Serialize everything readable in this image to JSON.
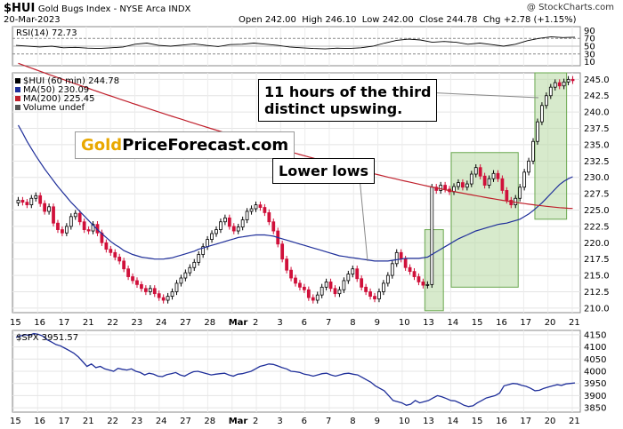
{
  "header": {
    "symbol": "$HUI",
    "name": "Gold Bugs Index - NYSE Arca INDX",
    "watermark": "@ StockCharts.com",
    "date": "20-Mar-2023",
    "open_label": "Open",
    "open": "242.00",
    "high_label": "High",
    "high": "246.10",
    "low_label": "Low",
    "low": "242.00",
    "close_label": "Close",
    "close": "244.78",
    "chg_label": "Chg",
    "chg": "+2.78 (+1.15%)"
  },
  "logo": {
    "part1": "Gold",
    "part2": "PriceForecast.com"
  },
  "annotations": {
    "callout1_line1": "11 hours of the third",
    "callout1_line2": "distinct upswing.",
    "callout2": "Lower lows"
  },
  "colors": {
    "up_candle": "#000000",
    "down_candle": "#d0103a",
    "ma50": "#1f2f9a",
    "ma200": "#c0202c",
    "highlight_fill": "#b6d9a3",
    "highlight_stroke": "#6aa84f",
    "spx_line": "#1f2f9a"
  },
  "chart_data": [
    {
      "type": "line",
      "name": "RSI panel",
      "legend": [
        {
          "label": "RSI(14)",
          "value": "72.73"
        }
      ],
      "y_ticks": [
        "70",
        "50",
        "30",
        "10",
        "90"
      ],
      "ylim": [
        0,
        100
      ],
      "values": [
        52,
        50,
        48,
        50,
        46,
        47,
        45,
        44,
        46,
        48,
        55,
        58,
        52,
        50,
        53,
        56,
        52,
        49,
        54,
        55,
        58,
        55,
        52,
        48,
        46,
        44,
        43,
        45,
        44,
        46,
        50,
        58,
        65,
        68,
        66,
        60,
        62,
        60,
        55,
        58,
        54,
        50,
        55,
        64,
        70,
        74,
        72,
        73
      ]
    },
    {
      "type": "line",
      "name": "HUI price (60 min)",
      "legend": [
        {
          "label": "$HUI (60 min)",
          "value": "244.78"
        },
        {
          "label": "MA(50)",
          "value": "230.09"
        },
        {
          "label": "MA(200)",
          "value": "225.45"
        },
        {
          "label": "Volume",
          "value": "undef"
        }
      ],
      "y_ticks": [
        "210.0",
        "212.5",
        "215.0",
        "217.5",
        "220.0",
        "222.5",
        "225.0",
        "227.5",
        "230.0",
        "232.5",
        "235.0",
        "237.5",
        "240.0",
        "242.5",
        "245.0"
      ],
      "ylim": [
        209.3,
        246.0
      ],
      "x_ticks": [
        "15",
        "16",
        "17",
        "21",
        "22",
        "23",
        "24",
        "27",
        "28",
        "Mar",
        "2",
        "3",
        "6",
        "7",
        "8",
        "9",
        "10",
        "13",
        "14",
        "15",
        "16",
        "17",
        "20",
        "21"
      ],
      "close": [
        226.5,
        226.2,
        225.8,
        226.8,
        227.2,
        226.0,
        224.8,
        225.5,
        223.0,
        222.0,
        221.5,
        222.5,
        224.0,
        224.5,
        223.2,
        222.0,
        221.8,
        222.8,
        221.5,
        220.0,
        219.0,
        218.5,
        217.8,
        217.2,
        216.0,
        214.8,
        214.2,
        213.6,
        213.0,
        212.5,
        213.0,
        212.2,
        211.6,
        211.2,
        211.8,
        212.5,
        213.8,
        214.6,
        215.4,
        216.2,
        217.0,
        218.2,
        219.4,
        220.5,
        221.4,
        222.0,
        223.2,
        223.8,
        222.5,
        221.8,
        222.4,
        223.5,
        224.8,
        225.2,
        225.8,
        225.4,
        224.6,
        223.2,
        221.8,
        219.8,
        217.5,
        215.8,
        214.6,
        213.8,
        213.2,
        212.8,
        211.6,
        211.2,
        212.0,
        213.2,
        214.0,
        213.0,
        212.2,
        212.8,
        214.2,
        215.2,
        216.0,
        214.5,
        213.2,
        212.5,
        211.8,
        211.4,
        212.5,
        213.8,
        215.0,
        216.8,
        218.5,
        217.5,
        216.2,
        215.6,
        214.8,
        214.0,
        213.5,
        213.6,
        228.5,
        228.0,
        228.8,
        228.2,
        227.8,
        228.6,
        229.2,
        228.5,
        229.0,
        230.5,
        231.5,
        230.2,
        228.8,
        229.8,
        230.6,
        229.8,
        228.0,
        226.5,
        225.8,
        226.8,
        228.5,
        230.8,
        232.5,
        235.5,
        238.5,
        241.0,
        242.5,
        243.8,
        244.5,
        244.0,
        244.6,
        245.0,
        244.8
      ],
      "ma50": [
        238.0,
        236.8,
        235.5,
        234.4,
        233.3,
        232.3,
        231.3,
        230.4,
        229.5,
        228.6,
        227.8,
        227.0,
        226.2,
        225.5,
        224.8,
        224.1,
        223.4,
        222.7,
        222.0,
        221.4,
        220.8,
        220.2,
        219.7,
        219.3,
        218.8,
        218.5,
        218.2,
        218.0,
        217.8,
        217.7,
        217.6,
        217.5,
        217.5,
        217.5,
        217.6,
        217.7,
        217.9,
        218.1,
        218.3,
        218.5,
        218.7,
        219.0,
        219.2,
        219.4,
        219.6,
        219.8,
        220.0,
        220.2,
        220.4,
        220.6,
        220.8,
        220.9,
        221.0,
        221.1,
        221.2,
        221.2,
        221.2,
        221.1,
        221.0,
        220.8,
        220.6,
        220.4,
        220.2,
        220.0,
        219.8,
        219.6,
        219.4,
        219.2,
        219.0,
        218.8,
        218.6,
        218.4,
        218.2,
        218.0,
        217.9,
        217.8,
        217.7,
        217.6,
        217.5,
        217.4,
        217.3,
        217.2,
        217.2,
        217.2,
        217.2,
        217.3,
        217.4,
        217.5,
        217.6,
        217.6,
        217.6,
        217.6,
        217.7,
        217.8,
        218.2,
        218.6,
        219.0,
        219.4,
        219.8,
        220.2,
        220.6,
        220.9,
        221.2,
        221.5,
        221.8,
        222.0,
        222.2,
        222.4,
        222.6,
        222.8,
        222.9,
        223.0,
        223.2,
        223.4,
        223.6,
        224.0,
        224.4,
        224.9,
        225.5,
        226.1,
        226.8,
        227.5,
        228.2,
        228.9,
        229.4,
        229.8,
        230.1
      ]
    },
    {
      "type": "line",
      "name": "SPX",
      "legend": [
        {
          "label": "$SPX",
          "value": "3951.57"
        }
      ],
      "y_ticks": [
        "4150",
        "4100",
        "4050",
        "4000",
        "3950",
        "3900",
        "3850"
      ],
      "ylim": [
        3832,
        4168
      ],
      "values": [
        4140,
        4145,
        4150,
        4148,
        4155,
        4152,
        4145,
        4130,
        4120,
        4110,
        4105,
        4095,
        4085,
        4075,
        4060,
        4040,
        4020,
        4030,
        4015,
        4020,
        4010,
        4005,
        4000,
        4012,
        4008,
        4005,
        4010,
        4000,
        3995,
        3985,
        3992,
        3988,
        3980,
        3978,
        3986,
        3990,
        3995,
        3985,
        3980,
        3990,
        3998,
        4000,
        3995,
        3990,
        3985,
        3988,
        3990,
        3992,
        3985,
        3980,
        3988,
        3990,
        3995,
        4000,
        4010,
        4020,
        4025,
        4030,
        4028,
        4022,
        4015,
        4010,
        4000,
        3998,
        3995,
        3988,
        3985,
        3980,
        3985,
        3990,
        3992,
        3985,
        3980,
        3985,
        3990,
        3992,
        3988,
        3985,
        3975,
        3965,
        3955,
        3940,
        3930,
        3920,
        3900,
        3880,
        3875,
        3870,
        3860,
        3865,
        3880,
        3870,
        3875,
        3880,
        3890,
        3900,
        3895,
        3888,
        3880,
        3878,
        3870,
        3860,
        3855,
        3858,
        3870,
        3880,
        3890,
        3895,
        3900,
        3910,
        3940,
        3945,
        3950,
        3948,
        3942,
        3938,
        3930,
        3920,
        3922,
        3930,
        3935,
        3940,
        3945,
        3942,
        3948,
        3950,
        3952
      ]
    }
  ]
}
